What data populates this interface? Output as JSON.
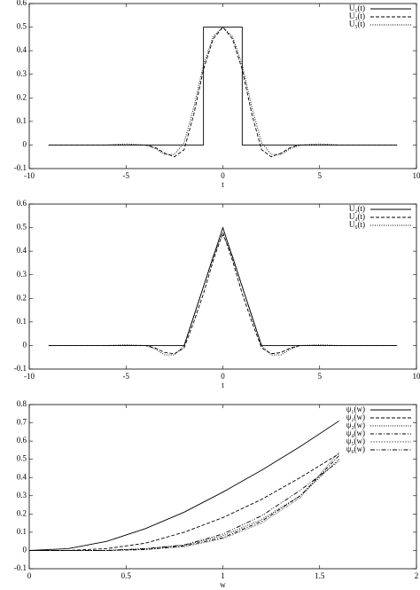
{
  "chart_data": [
    {
      "type": "line",
      "xlabel": "t",
      "xlim": [
        -10,
        10
      ],
      "ylim": [
        -0.1,
        0.6
      ],
      "xticks": [
        -10,
        -5,
        0,
        5,
        10
      ],
      "yticks": [
        -0.1,
        0,
        0.1,
        0.2,
        0.3,
        0.4,
        0.5,
        0.6
      ],
      "grid": false,
      "legend": "upper-right",
      "series": [
        {
          "name": "U₁(t)",
          "color": "#000000",
          "dash": "solid",
          "x": [
            -9,
            -1,
            -1,
            1,
            1,
            9
          ],
          "values": [
            0,
            0,
            0.5,
            0.5,
            0,
            0
          ]
        },
        {
          "name": "U₃(t)",
          "color": "#000000",
          "dash": "dashed",
          "x": [
            -9,
            -4,
            -3.5,
            -3,
            -2.5,
            -2,
            -1.5,
            -1,
            -0.5,
            0,
            0.5,
            1,
            1.5,
            2,
            2.5,
            3,
            3.5,
            4,
            9
          ],
          "values": [
            0,
            0,
            -0.01,
            -0.035,
            -0.05,
            -0.02,
            0.13,
            0.32,
            0.45,
            0.5,
            0.45,
            0.32,
            0.13,
            -0.02,
            -0.05,
            -0.035,
            -0.01,
            0,
            0
          ]
        },
        {
          "name": "U₅(t)",
          "color": "#000000",
          "dash": "dotted",
          "x": [
            -6,
            -5,
            -4,
            -3.5,
            -3,
            -2.5,
            -2,
            -1.5,
            -1,
            -0.5,
            0,
            0.5,
            1,
            1.5,
            2,
            2.5,
            3,
            3.5,
            4,
            5,
            6
          ],
          "values": [
            0,
            0.005,
            0,
            -0.015,
            -0.04,
            -0.04,
            0.01,
            0.16,
            0.34,
            0.46,
            0.5,
            0.46,
            0.34,
            0.16,
            0.01,
            -0.04,
            -0.04,
            -0.015,
            0,
            0.005,
            0
          ]
        }
      ]
    },
    {
      "type": "line",
      "xlabel": "t",
      "xlim": [
        -10,
        10
      ],
      "ylim": [
        -0.1,
        0.6
      ],
      "xticks": [
        -10,
        -5,
        0,
        5,
        10
      ],
      "yticks": [
        -0.1,
        0,
        0.1,
        0.2,
        0.3,
        0.4,
        0.5,
        0.6
      ],
      "grid": false,
      "legend": "upper-right",
      "series": [
        {
          "name": "U₂(t)",
          "color": "#000000",
          "dash": "solid",
          "x": [
            -9,
            -2,
            0,
            2,
            9
          ],
          "values": [
            0,
            0,
            0.5,
            0,
            0
          ]
        },
        {
          "name": "U₄(t)",
          "color": "#000000",
          "dash": "dashed",
          "x": [
            -9,
            -4,
            -3.5,
            -3,
            -2.5,
            -2,
            -1.5,
            -1,
            -0.5,
            0,
            0.5,
            1,
            1.5,
            2,
            2.5,
            3,
            3.5,
            4,
            9
          ],
          "values": [
            0,
            0,
            -0.01,
            -0.03,
            -0.035,
            -0.01,
            0.1,
            0.22,
            0.36,
            0.48,
            0.36,
            0.22,
            0.1,
            -0.01,
            -0.035,
            -0.03,
            -0.01,
            0,
            0
          ]
        },
        {
          "name": "U₆(t)",
          "color": "#000000",
          "dash": "dotted",
          "x": [
            -6,
            -5,
            -4,
            -3.5,
            -3,
            -2.5,
            -2,
            -1.5,
            -1,
            -0.5,
            0,
            0.5,
            1,
            1.5,
            2,
            2.5,
            3,
            3.5,
            4,
            5,
            6,
            7,
            8.5
          ],
          "values": [
            0,
            0.003,
            0,
            -0.015,
            -0.04,
            -0.04,
            0,
            0.12,
            0.25,
            0.38,
            0.47,
            0.38,
            0.25,
            0.12,
            0,
            -0.04,
            -0.04,
            -0.015,
            0,
            0.003,
            0,
            0,
            0
          ]
        }
      ]
    },
    {
      "type": "line",
      "xlabel": "w",
      "xlim": [
        0,
        2
      ],
      "ylim": [
        -0.1,
        0.8
      ],
      "xticks": [
        0,
        0.5,
        1,
        1.5,
        2
      ],
      "yticks": [
        -0.1,
        0,
        0.1,
        0.2,
        0.3,
        0.4,
        0.5,
        0.6,
        0.7,
        0.8
      ],
      "grid": false,
      "legend": "upper-right",
      "series": [
        {
          "name": "ψ₁(w)",
          "color": "#000000",
          "dash": "solid",
          "x": [
            0,
            0.2,
            0.4,
            0.6,
            0.8,
            1,
            1.2,
            1.4,
            1.6
          ],
          "values": [
            0,
            0.01,
            0.05,
            0.12,
            0.21,
            0.32,
            0.44,
            0.57,
            0.71
          ]
        },
        {
          "name": "ψ₂(w)",
          "color": "#000000",
          "dash": "dashed",
          "x": [
            0,
            0.2,
            0.4,
            0.6,
            0.8,
            1,
            1.2,
            1.4,
            1.6
          ],
          "values": [
            0,
            0,
            0.01,
            0.04,
            0.1,
            0.18,
            0.28,
            0.4,
            0.53
          ]
        },
        {
          "name": "ψ₃(w)",
          "color": "#000000",
          "dash": "dotted",
          "x": [
            0,
            0.2,
            0.4,
            0.6,
            0.8,
            1,
            1.2,
            1.4,
            1.6
          ],
          "values": [
            0,
            0,
            0,
            0.01,
            0.03,
            0.08,
            0.17,
            0.3,
            0.5
          ]
        },
        {
          "name": "ψ₄(w)",
          "color": "#000000",
          "dash": "dash-dot",
          "x": [
            0,
            0.2,
            0.4,
            0.6,
            0.8,
            1,
            1.2,
            1.4,
            1.6
          ],
          "values": [
            0,
            0,
            0,
            0.005,
            0.025,
            0.07,
            0.16,
            0.3,
            0.52
          ]
        },
        {
          "name": "ψ₅(w)",
          "color": "#000000",
          "dash": "fine-dot",
          "x": [
            0,
            0.2,
            0.4,
            0.6,
            0.8,
            1,
            1.2,
            1.4,
            1.6
          ],
          "values": [
            0,
            0,
            0,
            0.005,
            0.02,
            0.065,
            0.15,
            0.29,
            0.54
          ]
        },
        {
          "name": "ψ₆(w)",
          "color": "#000000",
          "dash": "dash-dot-dot",
          "x": [
            0,
            0.2,
            0.4,
            0.6,
            0.8,
            1,
            1.2,
            1.4,
            1.6
          ],
          "values": [
            0,
            0,
            0,
            0.01,
            0.03,
            0.09,
            0.19,
            0.33,
            0.49
          ]
        }
      ]
    }
  ]
}
